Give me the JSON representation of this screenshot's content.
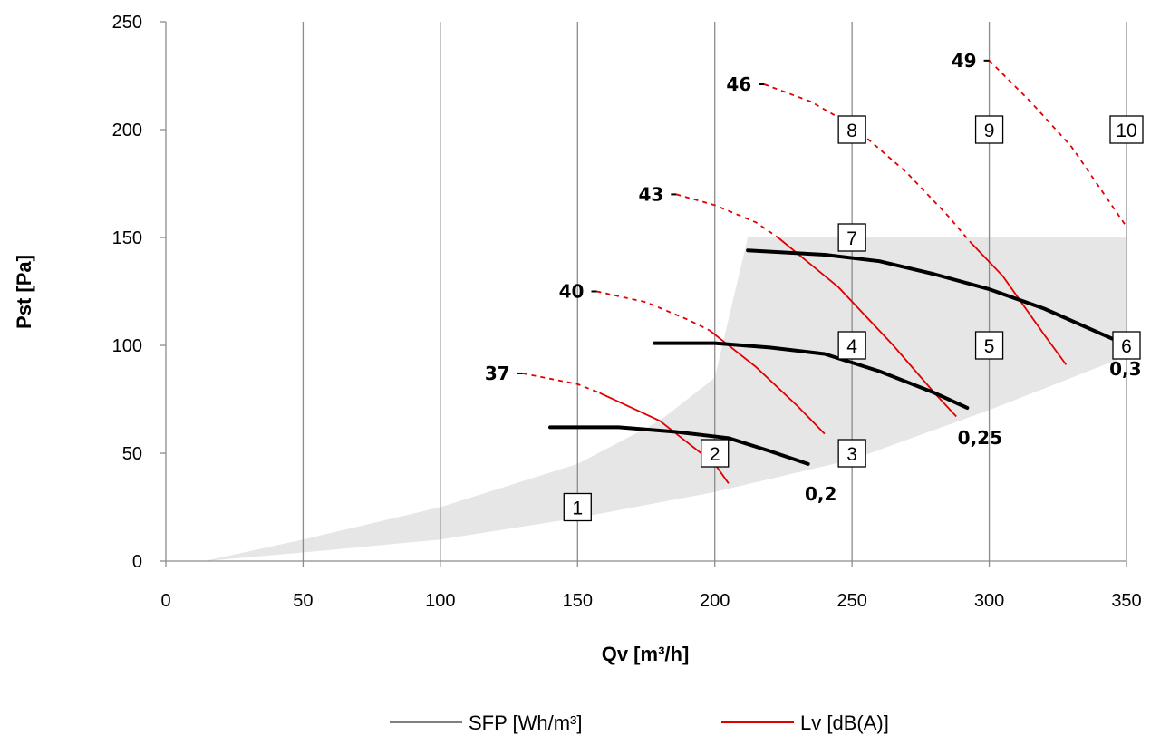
{
  "chart_data": {
    "type": "line",
    "xlabel": "Qv [m³/h]",
    "ylabel": "Pst [Pa]",
    "xlim": [
      0,
      350
    ],
    "ylim": [
      0,
      250
    ],
    "x_ticks": [
      0,
      50,
      100,
      150,
      200,
      250,
      300,
      350
    ],
    "y_ticks": [
      0,
      50,
      100,
      150,
      200,
      250
    ],
    "grid": "vertical",
    "legend_position": "bottom",
    "legend": [
      {
        "label": "SFP [Wh/m³]",
        "color": "#808080"
      },
      {
        "label": "Lv [dB(A)]",
        "color": "#e00000"
      }
    ],
    "operating_area": {
      "color": "#e6e6e6",
      "upper": [
        [
          14,
          0
        ],
        [
          50,
          10
        ],
        [
          100,
          25
        ],
        [
          150,
          45
        ],
        [
          180,
          65
        ],
        [
          200,
          85
        ],
        [
          212,
          150
        ],
        [
          350,
          150
        ]
      ],
      "lower": [
        [
          350,
          95
        ],
        [
          300,
          70
        ],
        [
          250,
          47
        ],
        [
          200,
          32
        ],
        [
          150,
          20
        ],
        [
          100,
          10
        ],
        [
          50,
          4
        ],
        [
          14,
          0
        ]
      ]
    },
    "sfp_curves": [
      {
        "label": "0,2",
        "color": "#000000",
        "points": [
          [
            140,
            62
          ],
          [
            165,
            62
          ],
          [
            185,
            60
          ],
          [
            205,
            57
          ],
          [
            220,
            51
          ],
          [
            234,
            45
          ]
        ]
      },
      {
        "label": "0,25",
        "color": "#000000",
        "points": [
          [
            178,
            101
          ],
          [
            200,
            101
          ],
          [
            220,
            99
          ],
          [
            240,
            96
          ],
          [
            260,
            88
          ],
          [
            280,
            78
          ],
          [
            292,
            71
          ]
        ]
      },
      {
        "label": "0,3",
        "color": "#000000",
        "points": [
          [
            212,
            144
          ],
          [
            240,
            142
          ],
          [
            260,
            139
          ],
          [
            280,
            133
          ],
          [
            300,
            126
          ],
          [
            320,
            117
          ],
          [
            345,
            103
          ]
        ]
      }
    ],
    "noise_curves": [
      {
        "label": "37",
        "color": "#e00000",
        "dashed": [
          [
            130,
            87
          ],
          [
            150,
            82
          ],
          [
            158,
            78
          ]
        ],
        "solid": [
          [
            158,
            78
          ],
          [
            180,
            65
          ],
          [
            200,
            45
          ],
          [
            205,
            36
          ]
        ]
      },
      {
        "label": "40",
        "color": "#e00000",
        "dashed": [
          [
            157,
            125
          ],
          [
            175,
            120
          ],
          [
            190,
            112
          ],
          [
            198,
            107
          ]
        ],
        "solid": [
          [
            198,
            107
          ],
          [
            215,
            90
          ],
          [
            230,
            72
          ],
          [
            240,
            59
          ]
        ]
      },
      {
        "label": "43",
        "color": "#e00000",
        "dashed": [
          [
            186,
            170
          ],
          [
            200,
            165
          ],
          [
            215,
            157
          ],
          [
            223,
            150
          ]
        ],
        "solid": [
          [
            223,
            150
          ],
          [
            245,
            127
          ],
          [
            265,
            100
          ],
          [
            280,
            78
          ],
          [
            288,
            67
          ]
        ]
      },
      {
        "label": "46",
        "color": "#e00000",
        "dashed": [
          [
            218,
            221
          ],
          [
            235,
            213
          ],
          [
            250,
            202
          ],
          [
            270,
            180
          ],
          [
            285,
            160
          ],
          [
            293,
            148
          ]
        ],
        "solid": [
          [
            293,
            148
          ],
          [
            305,
            132
          ],
          [
            320,
            105
          ],
          [
            328,
            91
          ]
        ]
      },
      {
        "label": "49",
        "color": "#e00000",
        "dashed": [
          [
            300,
            232
          ],
          [
            315,
            213
          ],
          [
            330,
            192
          ],
          [
            350,
            155
          ]
        ],
        "solid": []
      }
    ],
    "operating_points": [
      {
        "label": "1",
        "x": 150,
        "y": 25
      },
      {
        "label": "2",
        "x": 200,
        "y": 50
      },
      {
        "label": "3",
        "x": 250,
        "y": 50
      },
      {
        "label": "4",
        "x": 250,
        "y": 100
      },
      {
        "label": "5",
        "x": 300,
        "y": 100
      },
      {
        "label": "6",
        "x": 350,
        "y": 100
      },
      {
        "label": "7",
        "x": 250,
        "y": 150
      },
      {
        "label": "8",
        "x": 250,
        "y": 200
      },
      {
        "label": "9",
        "x": 300,
        "y": 200
      },
      {
        "label": "10",
        "x": 350,
        "y": 200
      }
    ]
  }
}
